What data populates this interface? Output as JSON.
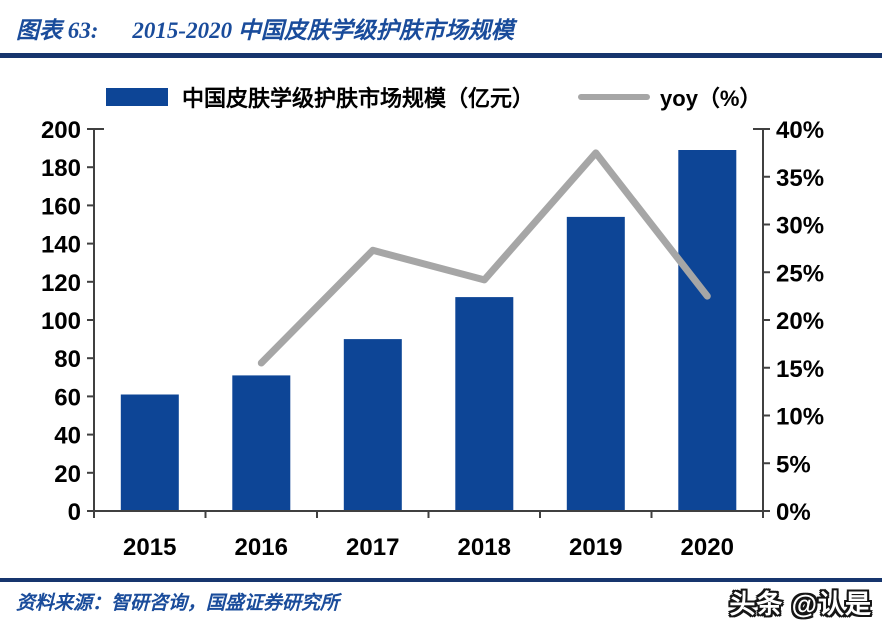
{
  "header": {
    "figure_label": "图表 63:",
    "title": "2015-2020 中国皮肤学级护肤市场规模"
  },
  "legend": {
    "bar_label": "中国皮肤学级护肤市场规模（亿元）",
    "line_label": "yoy（%）"
  },
  "chart_data": {
    "type": "combo",
    "categories": [
      "2015",
      "2016",
      "2017",
      "2018",
      "2019",
      "2020"
    ],
    "series": [
      {
        "name": "中国皮肤学级护肤市场规模（亿元）",
        "type": "bar",
        "axis": "left",
        "color": "#0D4596",
        "values": [
          61,
          71,
          90,
          112,
          154,
          189
        ]
      },
      {
        "name": "yoy（%）",
        "type": "line",
        "axis": "right",
        "color": "#A6A6A6",
        "values": [
          null,
          15.5,
          27.3,
          24.2,
          37.5,
          22.5
        ]
      }
    ],
    "left_axis": {
      "min": 0,
      "max": 200,
      "step": 20,
      "tick_labels": [
        "0",
        "20",
        "40",
        "60",
        "80",
        "100",
        "120",
        "140",
        "160",
        "180",
        "200"
      ]
    },
    "right_axis": {
      "min": 0,
      "max": 40,
      "step": 5,
      "tick_labels": [
        "0%",
        "5%",
        "10%",
        "15%",
        "20%",
        "25%",
        "30%",
        "35%",
        "40%"
      ]
    },
    "grid": false,
    "legend_position": "top"
  },
  "footer": {
    "source": "资料来源：智研咨询，国盛证券研究所",
    "watermark": "头条 @认是"
  },
  "colors": {
    "bar_blue": "#0D4596",
    "line_gray": "#A6A6A6",
    "title_blue": "#1A4C9B",
    "rule_navy": "#16356D",
    "axis_ink": "#404040"
  }
}
